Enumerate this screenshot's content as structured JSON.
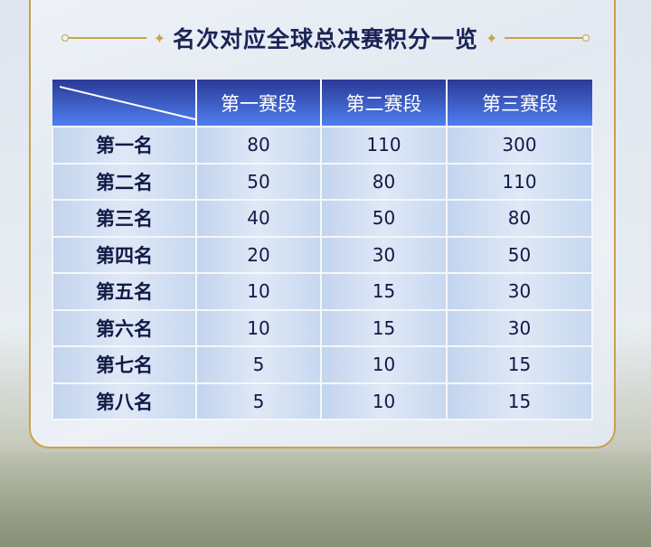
{
  "title": "名次对应全球总决赛积分一览",
  "table": {
    "headers": [
      "第一赛段",
      "第二赛段",
      "第三赛段"
    ],
    "rows": [
      {
        "rank": "第一名",
        "values": [
          "80",
          "110",
          "300"
        ]
      },
      {
        "rank": "第二名",
        "values": [
          "50",
          "80",
          "110"
        ]
      },
      {
        "rank": "第三名",
        "values": [
          "40",
          "50",
          "80"
        ]
      },
      {
        "rank": "第四名",
        "values": [
          "20",
          "30",
          "50"
        ]
      },
      {
        "rank": "第五名",
        "values": [
          "10",
          "15",
          "30"
        ]
      },
      {
        "rank": "第六名",
        "values": [
          "10",
          "15",
          "30"
        ]
      },
      {
        "rank": "第七名",
        "values": [
          "5",
          "10",
          "15"
        ]
      },
      {
        "rank": "第八名",
        "values": [
          "5",
          "10",
          "15"
        ]
      }
    ]
  },
  "colors": {
    "header": "#3a5ad0",
    "border": "#c9a24a",
    "text": "#1a2356"
  }
}
